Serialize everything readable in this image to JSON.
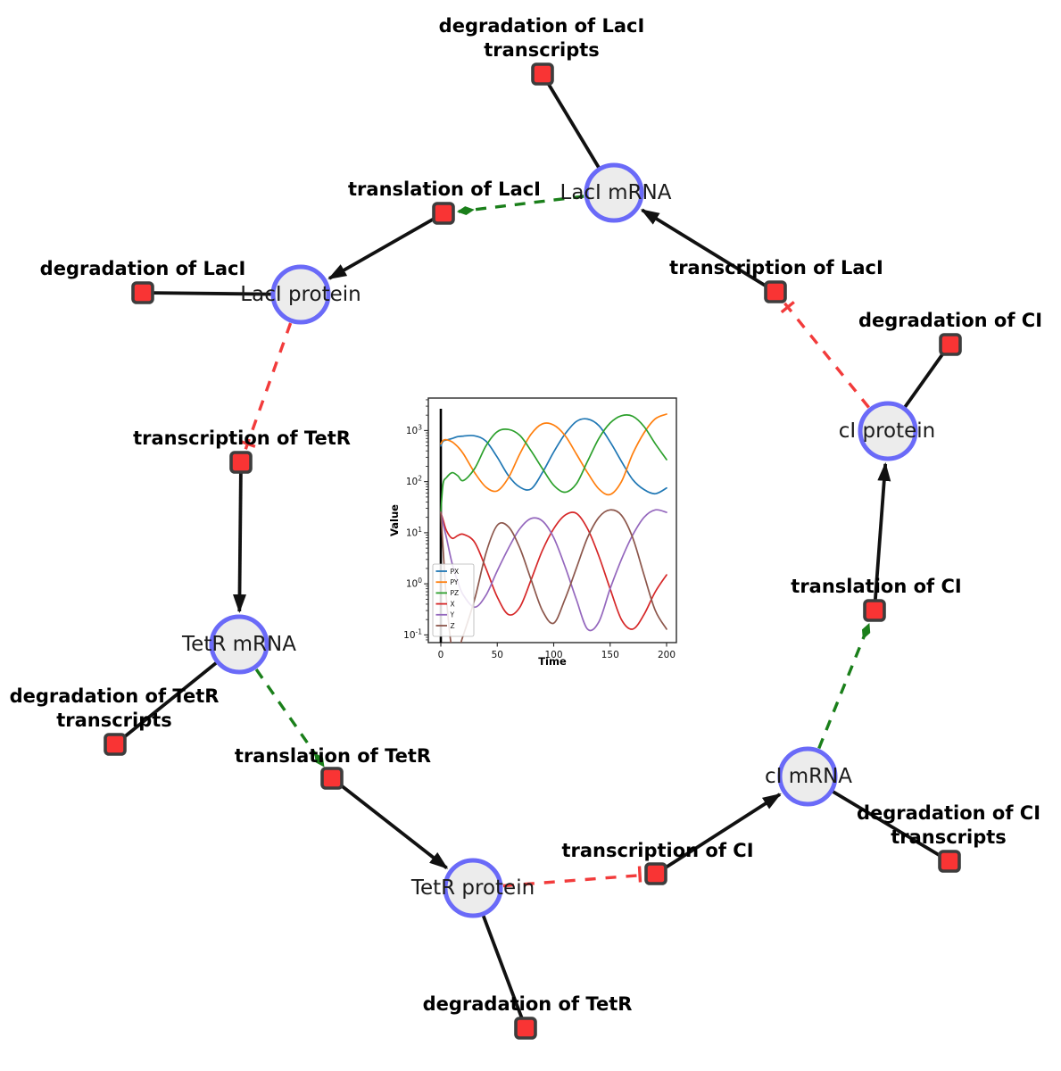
{
  "diagram": {
    "species": [
      {
        "label": "LacI mRNA"
      },
      {
        "label": "LacI protein"
      },
      {
        "label": "TetR mRNA"
      },
      {
        "label": "TetR protein"
      },
      {
        "label": "cI mRNA"
      },
      {
        "label": "cI protein"
      }
    ],
    "reactions": [
      {
        "lines": [
          "degradation of LacI",
          "transcripts"
        ]
      },
      {
        "lines": [
          "translation of LacI"
        ]
      },
      {
        "lines": [
          "transcription of LacI"
        ]
      },
      {
        "lines": [
          "degradation of LacI"
        ]
      },
      {
        "lines": [
          "degradation of CI"
        ]
      },
      {
        "lines": [
          "transcription of TetR"
        ]
      },
      {
        "lines": [
          "translation of CI"
        ]
      },
      {
        "lines": [
          "degradation of TetR",
          "transcripts"
        ]
      },
      {
        "lines": [
          "translation of TetR"
        ]
      },
      {
        "lines": [
          "transcription of CI"
        ]
      },
      {
        "lines": [
          "degradation of CI",
          "transcripts"
        ]
      },
      {
        "lines": [
          "degradation of TetR"
        ]
      }
    ],
    "colors": {
      "species_fill": "#ececec",
      "species_border": "#6a6af8",
      "reaction_fill": "#f93434",
      "reaction_border": "#3d3d3d",
      "edge_black": "#111111",
      "modifier_edge_green": "#1a7f1a",
      "inhibition_edge_red": "#f23b3b"
    }
  },
  "chart_data": {
    "type": "line",
    "title": "",
    "xlabel": "Time",
    "ylabel": "Value",
    "yscale": "log",
    "xlim": [
      -11,
      209
    ],
    "ylim": [
      0.07,
      4300
    ],
    "x_ticks": [
      0,
      50,
      100,
      150,
      200
    ],
    "y_tick_exponents": [
      3,
      2,
      1,
      0,
      -1
    ],
    "legend_position": "lower left",
    "time_marker_x": 0,
    "x": [
      0,
      2,
      5,
      10,
      15,
      20,
      30,
      40,
      50,
      60,
      70,
      80,
      90,
      100,
      110,
      120,
      130,
      140,
      150,
      160,
      170,
      180,
      190,
      200
    ],
    "series": [
      {
        "name": "PX",
        "color": "#1f77b4",
        "values": [
          500,
          620,
          650,
          700,
          760,
          780,
          790,
          620,
          300,
          130,
          78,
          72,
          150,
          380,
          850,
          1500,
          1680,
          1250,
          600,
          250,
          110,
          70,
          58,
          75
        ]
      },
      {
        "name": "PY",
        "color": "#ff7f0e",
        "values": [
          550,
          640,
          660,
          600,
          480,
          350,
          150,
          78,
          66,
          120,
          350,
          850,
          1350,
          1280,
          800,
          350,
          150,
          72,
          56,
          100,
          350,
          900,
          1700,
          2100
        ]
      },
      {
        "name": "PZ",
        "color": "#2ca02c",
        "values": [
          25,
          90,
          120,
          150,
          130,
          105,
          180,
          500,
          950,
          1050,
          800,
          400,
          180,
          85,
          62,
          90,
          250,
          700,
          1400,
          1950,
          1900,
          1200,
          550,
          270
        ]
      },
      {
        "name": "X",
        "color": "#d62728",
        "values": [
          25,
          18,
          11,
          7.8,
          8.8,
          9.3,
          6.5,
          2.0,
          0.55,
          0.25,
          0.35,
          1.2,
          4.5,
          12,
          22,
          24,
          12,
          3.5,
          0.8,
          0.2,
          0.13,
          0.25,
          0.7,
          1.5
        ]
      },
      {
        "name": "Y",
        "color": "#9467bd",
        "values": [
          25,
          15,
          8,
          2.5,
          1.1,
          0.6,
          0.35,
          0.6,
          1.8,
          5,
          12,
          19,
          17,
          8,
          2.2,
          0.5,
          0.13,
          0.18,
          0.8,
          3,
          9,
          20,
          28,
          25
        ]
      },
      {
        "name": "Z",
        "color": "#8c564b",
        "values": [
          25,
          5,
          0.5,
          0.05,
          0.05,
          0.1,
          0.5,
          4,
          14,
          13,
          5,
          1.2,
          0.3,
          0.17,
          0.5,
          2,
          8,
          20,
          28,
          22,
          8,
          1.5,
          0.3,
          0.13
        ]
      }
    ]
  }
}
